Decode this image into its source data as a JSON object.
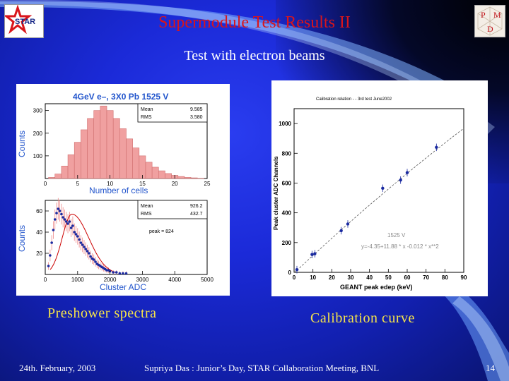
{
  "title": "Supermodule Test Results II",
  "subtitle": "Test with electron beams",
  "captions": {
    "left": "Preshower spectra",
    "right": "Calibration curve"
  },
  "footer": {
    "date": "24th. February,  2003",
    "author": "Supriya Das : Junior’s Day, STAR Collaboration Meeting, BNL",
    "page": "14"
  },
  "logos": {
    "left": {
      "text": "STAR"
    },
    "right": {
      "letters": [
        "P",
        "M",
        "D"
      ]
    }
  },
  "colors": {
    "title": "#d9151b",
    "caption": "#f5e34a",
    "hist_title": "#2255cc",
    "hist_fill": "#f0a0a0",
    "points": "#1a2aa0"
  },
  "chart_data": [
    {
      "type": "bar",
      "title": "4GeV e–, 3X0 Pb  1525 V",
      "xlabel": "Number of cells",
      "ylabel": "Counts",
      "xlim": [
        0,
        25
      ],
      "ylim": [
        0,
        330
      ],
      "x_ticks": [
        "0",
        "5",
        "10",
        "15",
        "20",
        "25"
      ],
      "y_ticks": [
        "100",
        "200",
        "300"
      ],
      "stats": [
        {
          "label": "Mean",
          "value": "9.585"
        },
        {
          "label": "RMS",
          "value": "3.580"
        }
      ],
      "categories": [
        1,
        2,
        3,
        4,
        5,
        6,
        7,
        8,
        9,
        10,
        11,
        12,
        13,
        14,
        15,
        16,
        17,
        18,
        19,
        20,
        21,
        22,
        23,
        24
      ],
      "values": [
        5,
        20,
        55,
        105,
        160,
        215,
        265,
        300,
        320,
        300,
        265,
        220,
        175,
        135,
        100,
        72,
        50,
        34,
        22,
        14,
        9,
        5,
        3,
        1
      ]
    },
    {
      "type": "scatter",
      "xlabel": "Cluster ADC",
      "ylabel": "Counts",
      "xlim": [
        0,
        5000
      ],
      "ylim": [
        0,
        70
      ],
      "x_ticks": [
        "0",
        "1000",
        "2000",
        "3000",
        "4000",
        "5000"
      ],
      "y_ticks": [
        "20",
        "40",
        "60"
      ],
      "stats": [
        {
          "label": "Mean",
          "value": "926.2"
        },
        {
          "label": "RMS",
          "value": "432.7"
        }
      ],
      "annotation": "peak = 824",
      "x": [
        100,
        150,
        200,
        250,
        300,
        350,
        400,
        450,
        500,
        550,
        600,
        650,
        700,
        750,
        800,
        850,
        900,
        950,
        1000,
        1050,
        1100,
        1150,
        1200,
        1250,
        1300,
        1350,
        1400,
        1450,
        1500,
        1550,
        1600,
        1650,
        1700,
        1750,
        1800,
        1850,
        1900,
        1950,
        2000,
        2100,
        2200,
        2300,
        2400,
        2500
      ],
      "y": [
        8,
        18,
        30,
        42,
        52,
        58,
        62,
        60,
        57,
        54,
        52,
        50,
        48,
        50,
        44,
        46,
        40,
        38,
        36,
        33,
        30,
        28,
        26,
        24,
        22,
        20,
        17,
        15,
        14,
        12,
        10,
        9,
        8,
        7,
        6,
        5,
        4,
        4,
        3,
        2,
        2,
        1,
        1,
        1
      ],
      "fit": {
        "type": "gaussian",
        "peak": 824
      }
    },
    {
      "type": "scatter",
      "title": "Calibration relation - - 3rd test June2002",
      "xlabel": "GEANT peak edep (keV)",
      "ylabel": "Peak cluster ADC Channels",
      "xlim": [
        0,
        90
      ],
      "ylim": [
        0,
        1100
      ],
      "x_ticks": [
        "0",
        "10",
        "20",
        "30",
        "40",
        "50",
        "60",
        "70",
        "80",
        "90"
      ],
      "y_ticks": [
        "0",
        "200",
        "400",
        "600",
        "800",
        "1000"
      ],
      "annotations": [
        "1525 V",
        "y=-4.35+11.88 * x -0.012 * x**2"
      ],
      "x": [
        1.5,
        9.5,
        11,
        25,
        28.5,
        47,
        56.5,
        60,
        75.5
      ],
      "y": [
        18,
        120,
        125,
        280,
        325,
        565,
        620,
        670,
        840
      ],
      "fit": {
        "type": "polynomial",
        "coefficients": [
          -4.35,
          11.88,
          -0.012
        ]
      }
    }
  ]
}
